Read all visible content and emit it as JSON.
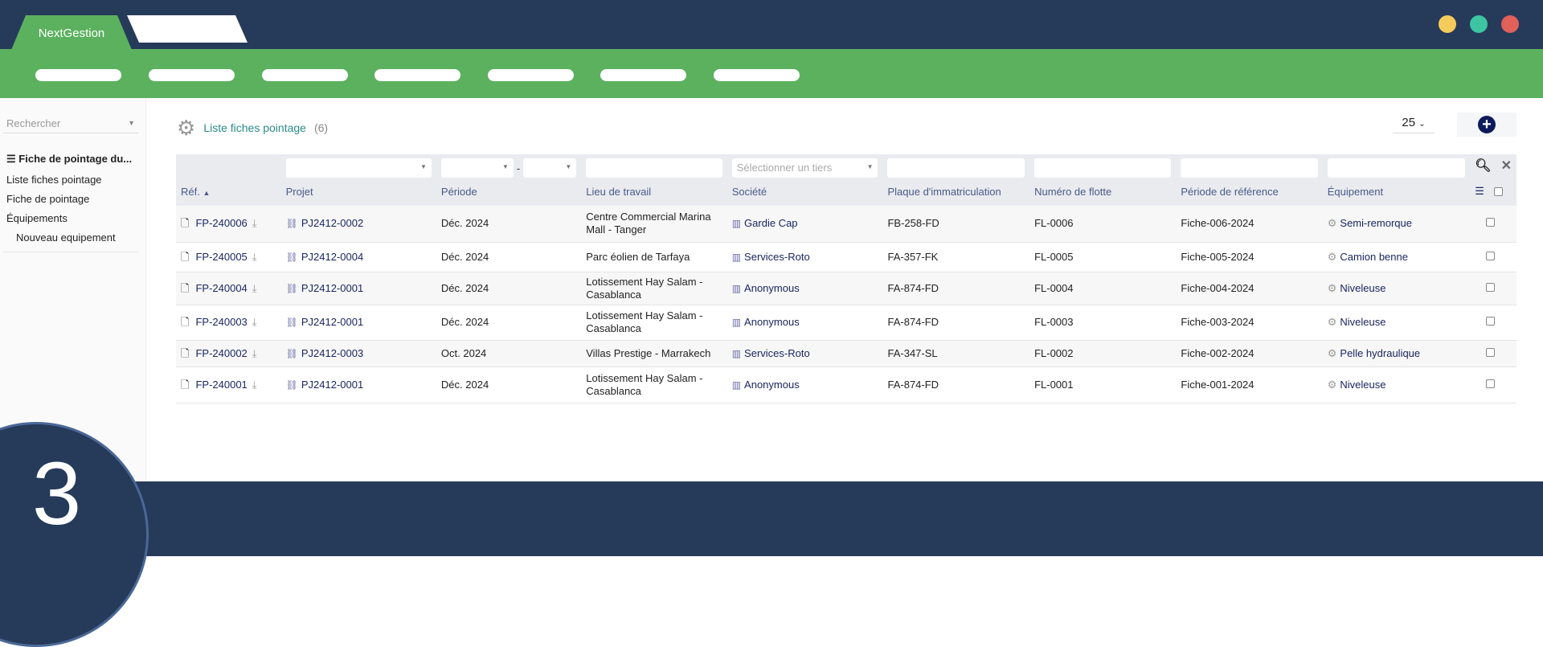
{
  "app": {
    "brand": "NextGestion",
    "window_dots": [
      "#f5cb5c",
      "#3cc5a0",
      "#e0605a"
    ]
  },
  "sidebar": {
    "search_placeholder": "Rechercher",
    "section_title": "Fiche de pointage du...",
    "items": [
      {
        "label": "Liste fiches pointage"
      },
      {
        "label": "Fiche de pointage"
      },
      {
        "label": "Équipements"
      },
      {
        "label": "Nouveau equipement"
      }
    ]
  },
  "main": {
    "title": "Liste fiches pointage",
    "count": "(6)",
    "per_page": "25"
  },
  "table": {
    "headers": [
      "Réf.",
      "Projet",
      "Période",
      "Lieu de travail",
      "Société",
      "Plaque d'immatriculation",
      "Numéro de flotte",
      "Période de référence",
      "Équipement"
    ],
    "tiers_placeholder": "Sélectionner un tiers",
    "period_sep": "-",
    "rows": [
      {
        "ref": "FP-240006",
        "projet": "PJ2412-0002",
        "periode": "Déc. 2024",
        "lieu": "Centre Commercial Marina Mall - Tanger",
        "societe": "Gardie Cap",
        "plaque": "FB-258-FD",
        "flotte": "FL-0006",
        "ref_periode": "Fiche-006-2024",
        "equipement": "Semi-remorque"
      },
      {
        "ref": "FP-240005",
        "projet": "PJ2412-0004",
        "periode": "Déc. 2024",
        "lieu": "Parc éolien de Tarfaya",
        "societe": "Services-Roto",
        "plaque": "FA-357-FK",
        "flotte": "FL-0005",
        "ref_periode": "Fiche-005-2024",
        "equipement": "Camion benne"
      },
      {
        "ref": "FP-240004",
        "projet": "PJ2412-0001",
        "periode": "Déc. 2024",
        "lieu": "Lotissement Hay Salam - Casablanca",
        "societe": "Anonymous",
        "plaque": "FA-874-FD",
        "flotte": "FL-0004",
        "ref_periode": "Fiche-004-2024",
        "equipement": "Niveleuse"
      },
      {
        "ref": "FP-240003",
        "projet": "PJ2412-0001",
        "periode": "Déc. 2024",
        "lieu": "Lotissement Hay Salam - Casablanca",
        "societe": "Anonymous",
        "plaque": "FA-874-FD",
        "flotte": "FL-0003",
        "ref_periode": "Fiche-003-2024",
        "equipement": "Niveleuse"
      },
      {
        "ref": "FP-240002",
        "projet": "PJ2412-0003",
        "periode": "Oct. 2024",
        "lieu": "Villas Prestige - Marrakech",
        "societe": "Services-Roto",
        "plaque": "FA-347-SL",
        "flotte": "FL-0002",
        "ref_periode": "Fiche-002-2024",
        "equipement": "Pelle hydraulique"
      },
      {
        "ref": "FP-240001",
        "projet": "PJ2412-0001",
        "periode": "Déc. 2024",
        "lieu": "Lotissement Hay Salam - Casablanca",
        "societe": "Anonymous",
        "plaque": "FA-874-FD",
        "flotte": "FL-0001",
        "ref_periode": "Fiche-001-2024",
        "equipement": "Niveleuse"
      }
    ]
  },
  "step_number": "3"
}
